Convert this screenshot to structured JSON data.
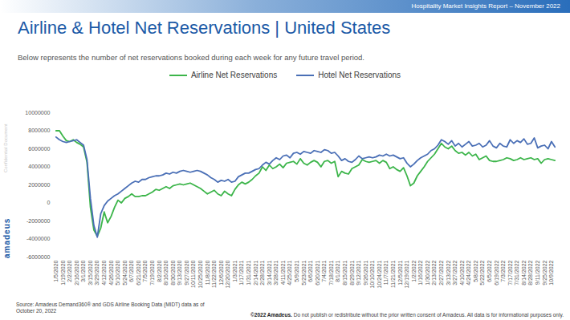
{
  "page": {
    "header": "Hospitality Market Insights Report – November 2022",
    "confidential": "Confidential Document",
    "brand": "amadeus",
    "source": "Source: Amadeus Demand360® and GDS Airline Booking Data (MIDT) data as of October 20, 2022",
    "copyright": "©2022 Amadeus.",
    "disclaimer": "Do not publish or redistribute without the prior written consent of Amadeus. All data is for informational purposes only."
  },
  "chart_data": {
    "type": "line",
    "title": "Airline & Hotel Net Reservations | United States",
    "subtitle": "Below represents the number of net reservations booked during each week for any future travel period.",
    "categories": [
      "1/5/2020",
      null,
      "1/19/2020",
      null,
      "2/2/2020",
      null,
      "2/16/2020",
      null,
      "3/1/2020",
      null,
      "3/15/2020",
      null,
      "3/29/2020",
      null,
      "4/12/2020",
      null,
      "4/26/2020",
      null,
      "5/10/2020",
      null,
      "5/24/2020",
      null,
      "6/7/2020",
      null,
      "6/21/2020",
      null,
      "7/5/2020",
      null,
      "7/19/2020",
      null,
      "8/2/2020",
      null,
      "8/16/2020",
      null,
      "8/30/2020",
      null,
      "9/13/2020",
      null,
      "9/27/2020",
      null,
      "10/11/2020",
      null,
      "10/25/2020",
      null,
      "11/8/2020",
      null,
      "11/22/2020",
      null,
      "12/6/2020",
      null,
      "12/20/2020",
      null,
      "1/3/2021",
      null,
      "1/17/2021",
      null,
      "1/31/2021",
      null,
      "2/14/2021",
      null,
      "2/28/2021",
      null,
      "3/14/2021",
      null,
      "3/28/2021",
      null,
      "4/11/2021",
      null,
      "4/25/2021",
      null,
      "5/9/2021",
      null,
      "5/23/2021",
      null,
      "6/6/2021",
      null,
      "6/20/2021",
      null,
      "7/4/2021",
      null,
      "7/18/2021",
      null,
      "8/1/2021",
      null,
      "8/15/2021",
      null,
      "8/29/2021",
      null,
      "9/12/2021",
      null,
      "9/26/2021",
      null,
      "10/10/2021",
      null,
      "10/24/2021",
      null,
      "11/7/2021",
      null,
      "11/21/2021",
      null,
      "12/5/2021",
      null,
      "12/19/2021",
      null,
      "1/2/2022",
      null,
      "1/16/2022",
      null,
      "1/30/2022",
      null,
      "2/13/2022",
      null,
      "2/27/2022",
      null,
      "3/13/2022",
      null,
      "3/27/2022",
      null,
      "4/10/2022",
      null,
      "4/24/2022",
      null,
      "5/8/2022",
      null,
      "5/22/2022",
      null,
      "6/5/2022",
      null,
      "6/19/2022",
      null,
      "7/3/2022",
      null,
      "7/17/2022",
      null,
      "7/31/2022",
      null,
      "8/14/2022",
      null,
      "8/28/2022",
      null,
      "9/11/2022",
      null,
      "9/25/2022",
      null,
      "10/9/2022",
      null
    ],
    "series": [
      {
        "name": "Airline Net Reservations",
        "color": "#3cb54a",
        "values": [
          8000000,
          8000000,
          7400000,
          6900000,
          6800000,
          7000000,
          6700000,
          6500000,
          6200000,
          4500000,
          -500000,
          -3000000,
          -3700000,
          -2800000,
          -1000000,
          -2200000,
          -1500000,
          -500000,
          300000,
          0,
          500000,
          700000,
          1000000,
          700000,
          700000,
          800000,
          800000,
          1000000,
          1200000,
          1500000,
          1400000,
          1600000,
          1800000,
          1600000,
          1900000,
          2000000,
          2100000,
          2000000,
          2100000,
          2200000,
          2000000,
          1800000,
          1600000,
          1300000,
          1000000,
          1200000,
          1400000,
          1000000,
          800000,
          1300000,
          1000000,
          800000,
          1500000,
          2000000,
          2300000,
          2100000,
          2300000,
          2600000,
          3000000,
          3300000,
          4000000,
          3600000,
          4200000,
          3800000,
          4000000,
          4300000,
          3900000,
          4400000,
          4500000,
          4600000,
          4300000,
          4900000,
          4400000,
          4200000,
          4500000,
          4700000,
          4500000,
          4000000,
          4600000,
          4700000,
          4400000,
          4600000,
          2900000,
          3500000,
          3300000,
          3200000,
          3800000,
          4000000,
          4200000,
          4800000,
          4600000,
          4500000,
          4600000,
          4700000,
          4400000,
          4700000,
          4500000,
          3800000,
          4000000,
          3700000,
          3500000,
          3900000,
          3000000,
          1900000,
          2200000,
          3000000,
          3500000,
          4000000,
          4600000,
          5000000,
          5400000,
          6000000,
          6600000,
          6200000,
          6000000,
          6300000,
          5800000,
          5500000,
          5600000,
          5300000,
          5600000,
          5200000,
          5400000,
          4800000,
          5000000,
          5200000,
          4700000,
          4600000,
          4600000,
          4700000,
          4800000,
          5000000,
          4900000,
          4700000,
          4800000,
          5000000,
          4800000,
          4900000,
          5000000,
          4800000,
          4900000,
          4400000,
          4800000,
          4900000,
          4800000,
          4700000
        ]
      },
      {
        "name": "Hotel Net Reservations",
        "color": "#4a6fb6",
        "values": [
          7300000,
          7000000,
          6800000,
          6700000,
          6800000,
          6900000,
          7000000,
          6700000,
          6400000,
          4800000,
          500000,
          -2500000,
          -3800000,
          -1200000,
          -300000,
          200000,
          500000,
          800000,
          1000000,
          1300000,
          1600000,
          1900000,
          2200000,
          2400000,
          2300000,
          2600000,
          2600000,
          2800000,
          2900000,
          3000000,
          3000000,
          3100000,
          3300000,
          3200000,
          3400000,
          3300000,
          3500000,
          3600000,
          3500000,
          3400000,
          3500000,
          3600000,
          3500000,
          3300000,
          3100000,
          2800000,
          2600000,
          2300000,
          2500000,
          2400000,
          2600000,
          2300000,
          2400000,
          2900000,
          3100000,
          3300000,
          3300000,
          3500000,
          3700000,
          3800000,
          4200000,
          4500000,
          4300000,
          4700000,
          5000000,
          4800000,
          5200000,
          5300000,
          5000000,
          5500000,
          5600000,
          5400000,
          5700000,
          5600000,
          5500000,
          5800000,
          5700000,
          5600000,
          5900000,
          5800000,
          5500000,
          5600000,
          5200000,
          4700000,
          4900000,
          4600000,
          4500000,
          4800000,
          5200000,
          4900000,
          5000000,
          5100000,
          5000000,
          5100000,
          5300000,
          5200000,
          5400000,
          5200000,
          5300000,
          5100000,
          4900000,
          5000000,
          4400000,
          4000000,
          4300000,
          4700000,
          5000000,
          5200000,
          5400000,
          5800000,
          6000000,
          6400000,
          7000000,
          6800000,
          6500000,
          6900000,
          6300000,
          6600000,
          6200000,
          6500000,
          6800000,
          6300000,
          6400000,
          6600000,
          6200000,
          6400000,
          6900000,
          6300000,
          6100000,
          6600000,
          6300000,
          6200000,
          7000000,
          6600000,
          6900000,
          6700000,
          7100000,
          6500000,
          6600000,
          7200000,
          6100000,
          6300000,
          6400000,
          6000000,
          6800000,
          6200000
        ]
      }
    ],
    "ylim": [
      -6000000,
      10000000
    ],
    "yticks": [
      -6000000,
      -4000000,
      -2000000,
      0,
      2000000,
      4000000,
      6000000,
      8000000,
      10000000
    ],
    "grid": false,
    "legend": "top"
  }
}
